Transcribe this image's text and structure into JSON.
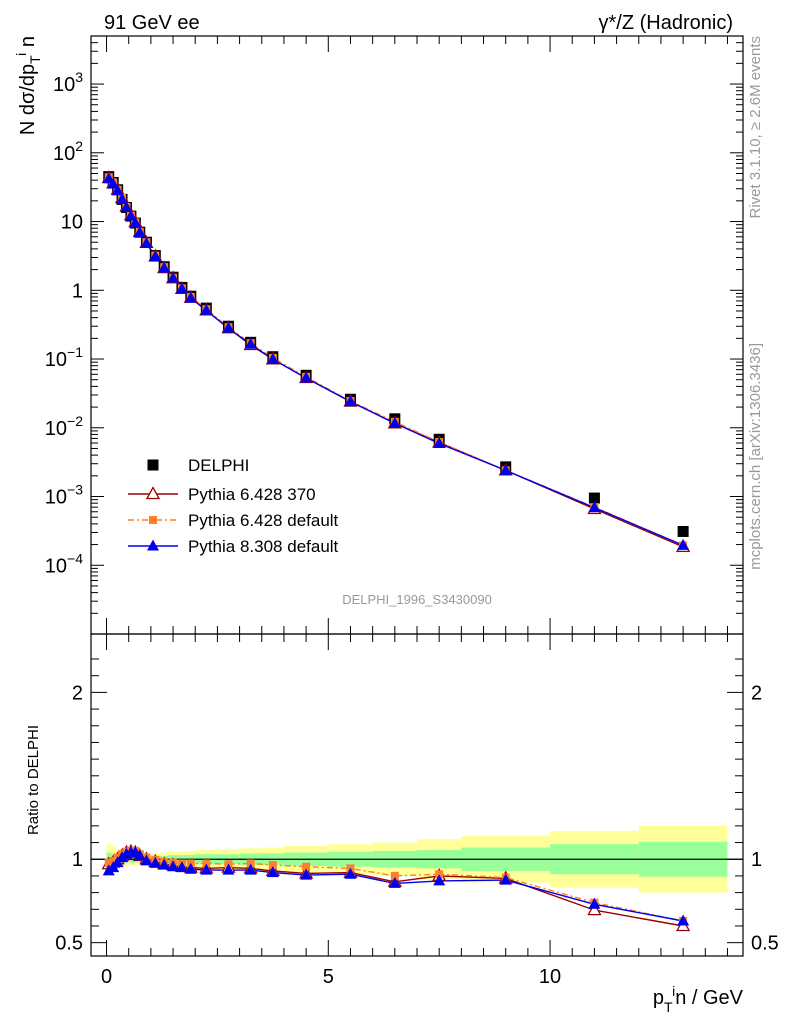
{
  "header": {
    "left": "91 GeV ee",
    "right": "γ*/Z (Hadronic)"
  },
  "side_text": {
    "rivet": "Rivet 3.1.10, ≥ 2.6M events",
    "mcplots": "mcplots.cern.ch [arXiv:1306.3436]"
  },
  "watermark": "DELPHI_1996_S3430090",
  "colors": {
    "data": "#000000",
    "py6_370": "#990000",
    "py6_default": "#ff7f2a",
    "py8_default": "#0000ee",
    "band_inner": "#99ff99",
    "band_outer": "#ffff99"
  },
  "chart_data": [
    {
      "type": "scatter",
      "panel": "main",
      "ylabel": "N dσ/dp_T^i n",
      "yscale": "log",
      "ylim": [
        1e-05,
        5000
      ],
      "xlim": [
        -0.35,
        14.35
      ],
      "y_ticks": [
        {
          "value": 0.0001,
          "label": "10",
          "exp": "−4"
        },
        {
          "value": 0.001,
          "label": "10",
          "exp": "−3"
        },
        {
          "value": 0.01,
          "label": "10",
          "exp": "−2"
        },
        {
          "value": 0.1,
          "label": "10",
          "exp": "−1"
        },
        {
          "value": 1,
          "label": "1",
          "exp": ""
        },
        {
          "value": 10,
          "label": "10",
          "exp": ""
        },
        {
          "value": 100,
          "label": "10",
          "exp": "2"
        },
        {
          "value": 1000,
          "label": "10",
          "exp": "3"
        }
      ],
      "x": [
        0.05,
        0.15,
        0.25,
        0.35,
        0.45,
        0.55,
        0.65,
        0.75,
        0.9,
        1.1,
        1.3,
        1.5,
        1.7,
        1.9,
        2.25,
        2.75,
        3.25,
        3.75,
        4.5,
        5.5,
        6.5,
        7.5,
        9.0,
        11.0,
        13.0
      ],
      "legend": {
        "position": "lower-left"
      },
      "series": [
        {
          "name": "DELPHI",
          "marker": "square",
          "values": [
            45,
            37,
            29,
            21,
            16,
            12,
            9.5,
            7.0,
            5.0,
            3.2,
            2.2,
            1.55,
            1.1,
            0.82,
            0.55,
            0.3,
            0.175,
            0.108,
            0.058,
            0.026,
            0.0135,
            0.0068,
            0.0027,
            0.00095,
            0.00031
          ]
        },
        {
          "name": "Pythia 6.428 370",
          "marker": "open-triangle",
          "values": [
            43,
            36,
            29,
            22,
            16.5,
            12.4,
            9.8,
            7.1,
            4.9,
            3.1,
            2.1,
            1.5,
            1.05,
            0.78,
            0.51,
            0.28,
            0.16,
            0.099,
            0.053,
            0.024,
            0.0116,
            0.0061,
            0.0024,
            0.00066,
            0.000185
          ]
        },
        {
          "name": "Pythia 6.428 default",
          "marker": "small-square",
          "values": [
            44,
            37,
            29,
            22,
            16.3,
            12.2,
            9.7,
            7.1,
            5.0,
            3.2,
            2.17,
            1.52,
            1.07,
            0.8,
            0.53,
            0.29,
            0.17,
            0.104,
            0.055,
            0.0245,
            0.0122,
            0.0062,
            0.0024,
            0.0007,
            0.000195
          ]
        },
        {
          "name": "Pythia 8.308 default",
          "marker": "triangle",
          "values": [
            42,
            35,
            28,
            21,
            16.0,
            12.0,
            9.5,
            6.9,
            4.8,
            3.1,
            2.1,
            1.5,
            1.05,
            0.77,
            0.51,
            0.28,
            0.164,
            0.099,
            0.053,
            0.024,
            0.0116,
            0.0059,
            0.0024,
            0.00069,
            0.000195
          ]
        }
      ]
    },
    {
      "type": "line",
      "panel": "ratio",
      "ylabel": "Ratio to DELPHI",
      "xlabel": "p_T^i n / GeV",
      "ylim": [
        0.42,
        2.35
      ],
      "xlim": [
        -0.35,
        14.35
      ],
      "x_ticks": [
        0,
        5,
        10
      ],
      "y_ticks": [
        0.5,
        1,
        2
      ],
      "x": [
        0.05,
        0.15,
        0.25,
        0.35,
        0.45,
        0.55,
        0.65,
        0.75,
        0.9,
        1.1,
        1.3,
        1.5,
        1.7,
        1.9,
        2.25,
        2.75,
        3.25,
        3.75,
        4.5,
        5.5,
        6.5,
        7.5,
        9.0,
        11.0,
        13.0
      ],
      "bins": [
        [
          0.0,
          0.1
        ],
        [
          0.1,
          0.2
        ],
        [
          0.2,
          0.3
        ],
        [
          0.3,
          0.4
        ],
        [
          0.4,
          0.5
        ],
        [
          0.5,
          0.6
        ],
        [
          0.6,
          0.7
        ],
        [
          0.7,
          0.8
        ],
        [
          0.8,
          1.0
        ],
        [
          1.0,
          1.2
        ],
        [
          1.2,
          1.4
        ],
        [
          1.4,
          1.6
        ],
        [
          1.6,
          1.8
        ],
        [
          1.8,
          2.0
        ],
        [
          2.0,
          2.5
        ],
        [
          2.5,
          3.0
        ],
        [
          3.0,
          3.5
        ],
        [
          3.5,
          4.0
        ],
        [
          4.0,
          5.0
        ],
        [
          5.0,
          6.0
        ],
        [
          6.0,
          7.0
        ],
        [
          7.0,
          8.0
        ],
        [
          8.0,
          10.0
        ],
        [
          10.0,
          12.0
        ],
        [
          12.0,
          14.0
        ]
      ],
      "band_inner_halfwidth": [
        0.04,
        0.035,
        0.03,
        0.025,
        0.02,
        0.02,
        0.02,
        0.02,
        0.02,
        0.02,
        0.02,
        0.025,
        0.025,
        0.025,
        0.03,
        0.03,
        0.035,
        0.035,
        0.04,
        0.045,
        0.05,
        0.055,
        0.07,
        0.09,
        0.105
      ],
      "band_outer_halfwidth": [
        0.09,
        0.08,
        0.06,
        0.05,
        0.04,
        0.035,
        0.035,
        0.035,
        0.035,
        0.035,
        0.04,
        0.045,
        0.045,
        0.05,
        0.055,
        0.06,
        0.065,
        0.07,
        0.08,
        0.09,
        0.1,
        0.12,
        0.14,
        0.17,
        0.2
      ],
      "series": [
        {
          "name": "Pythia 6.428 370",
          "values": [
            0.97,
            0.98,
            1.0,
            1.02,
            1.04,
            1.045,
            1.04,
            1.02,
            1.0,
            0.985,
            0.97,
            0.965,
            0.955,
            0.95,
            0.945,
            0.95,
            0.945,
            0.93,
            0.915,
            0.92,
            0.865,
            0.9,
            0.885,
            0.695,
            0.6
          ]
        },
        {
          "name": "Pythia 6.428 default",
          "values": [
            0.98,
            0.99,
            1.01,
            1.03,
            1.045,
            1.05,
            1.05,
            1.03,
            1.01,
            0.995,
            0.985,
            0.98,
            0.975,
            0.975,
            0.975,
            0.97,
            0.975,
            0.965,
            0.955,
            0.945,
            0.9,
            0.91,
            0.89,
            0.74,
            0.63
          ]
        },
        {
          "name": "Pythia 8.308 default",
          "values": [
            0.93,
            0.95,
            0.98,
            1.01,
            1.03,
            1.04,
            1.04,
            1.02,
            0.99,
            0.975,
            0.965,
            0.955,
            0.95,
            0.94,
            0.935,
            0.935,
            0.935,
            0.92,
            0.905,
            0.91,
            0.855,
            0.87,
            0.875,
            0.73,
            0.63
          ]
        }
      ]
    }
  ]
}
